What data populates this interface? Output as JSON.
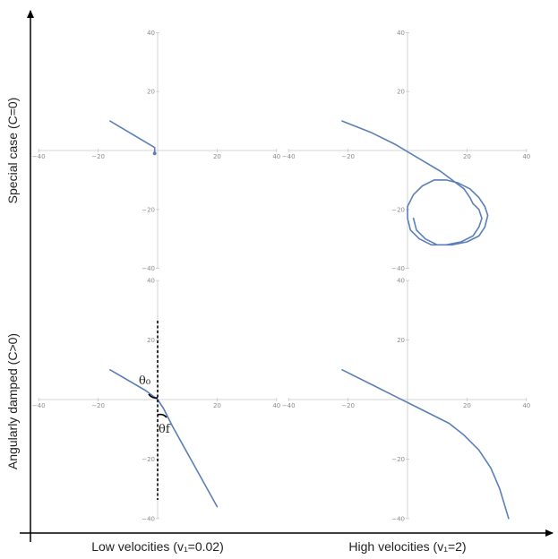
{
  "labels": {
    "row_top": "Special case (C=0)",
    "row_bottom": "Angularly damped (C>0)",
    "col_left": "Low velocities (v₁=0.02)",
    "col_right": "High velocities (v₁=2)",
    "theta_initial": "θ₀",
    "theta_final": "θf"
  },
  "colors": {
    "trajectory": "#5b7fb8",
    "panel_axis": "#c8c8c8",
    "main_axis": "#000000"
  },
  "chart_data": [
    {
      "type": "line",
      "panel": "top-left",
      "xlim": [
        -40,
        40
      ],
      "ylim": [
        -40,
        40
      ],
      "x_ticks": [
        -40,
        -20,
        20,
        40
      ],
      "y_ticks": [
        40,
        20,
        -20,
        -40
      ],
      "series": [
        {
          "x": [
            -16,
            -1,
            -1,
            -1
          ],
          "y": [
            10,
            1,
            0,
            -1
          ]
        }
      ],
      "points": [
        {
          "x": -1,
          "y": -1
        }
      ]
    },
    {
      "type": "line",
      "panel": "top-right",
      "xlim": [
        -40,
        40
      ],
      "ylim": [
        -40,
        40
      ],
      "x_ticks": [
        -40,
        -20,
        20,
        40
      ],
      "y_ticks": [
        40,
        20,
        -20,
        -40
      ],
      "series": [
        {
          "x": [
            -22,
            -12,
            -4,
            1,
            6,
            11,
            15,
            19,
            21,
            22
          ],
          "y": [
            10,
            6,
            2,
            -1,
            -4,
            -7,
            -10,
            -13,
            -16,
            -18
          ]
        },
        {
          "x": [
            22,
            24,
            25,
            24,
            22,
            18,
            13,
            8,
            4,
            1,
            0,
            0,
            2,
            5,
            9,
            13,
            17,
            21,
            24,
            26,
            27,
            26,
            24,
            20,
            15,
            10,
            6,
            3,
            2
          ],
          "y": [
            -18,
            -20,
            -23,
            -26,
            -29,
            -31,
            -32,
            -32,
            -30,
            -27,
            -23,
            -19,
            -15,
            -12,
            -10,
            -10,
            -11,
            -13,
            -16,
            -19,
            -22,
            -26,
            -29,
            -31,
            -32,
            -32,
            -30,
            -27,
            -23
          ]
        }
      ]
    },
    {
      "type": "line",
      "panel": "bottom-left",
      "xlim": [
        -40,
        40
      ],
      "ylim": [
        -40,
        40
      ],
      "x_ticks": [
        -40,
        -20,
        20,
        40
      ],
      "y_ticks": [
        40,
        20,
        -20,
        -40
      ],
      "series": [
        {
          "x": [
            -16,
            -4,
            0,
            2,
            5,
            10,
            15,
            20
          ],
          "y": [
            10,
            3,
            0,
            -3,
            -9,
            -18,
            -27,
            -36
          ]
        }
      ]
    },
    {
      "type": "line",
      "panel": "bottom-right",
      "xlim": [
        -40,
        40
      ],
      "ylim": [
        -40,
        40
      ],
      "x_ticks": [
        -40,
        -20,
        20,
        40
      ],
      "y_ticks": [
        40,
        20,
        -20,
        -40
      ],
      "series": [
        {
          "x": [
            -22,
            -12,
            -4,
            2,
            8,
            14,
            19,
            24,
            28,
            31,
            34
          ],
          "y": [
            10,
            5,
            1,
            -2,
            -5,
            -8,
            -12,
            -17,
            -23,
            -30,
            -40
          ]
        }
      ]
    }
  ]
}
